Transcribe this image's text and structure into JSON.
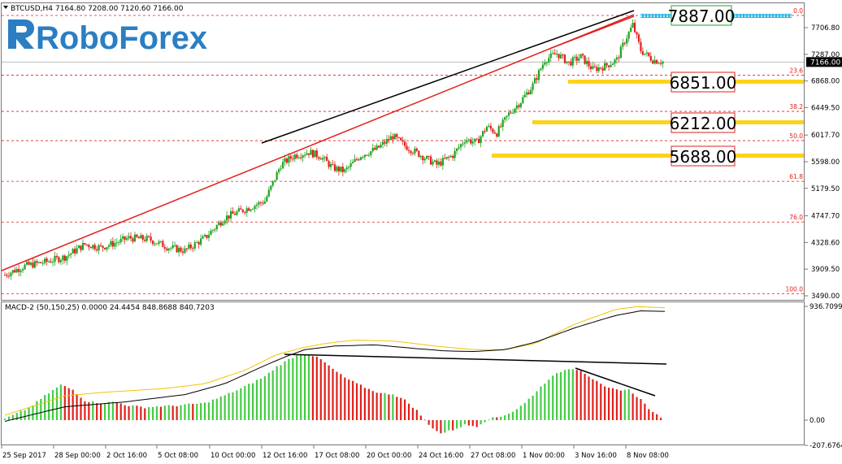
{
  "header": {
    "menu_icon": "triangle-down-icon",
    "symbol": "BTCUSD,H4",
    "ohlc": "7164.80 7208.00 7120.60 7166.00"
  },
  "brand": {
    "name": "RoboForex",
    "logo_icon": "roboforex-r-logo"
  },
  "indicator": {
    "label": "MACD-2 (50,150,25) 0.0000 24.4454 848.8688 840.7203"
  },
  "colors": {
    "bull": "#1fa31f",
    "bear": "#e0201b",
    "fib_line": "#e0201b",
    "trend_red": "#e0201b",
    "trend_black": "#000000",
    "hist_green": "#44cc44",
    "hist_red": "#e0201b",
    "signal": "#f3c400",
    "macd_line": "#000000",
    "target_box": "#ffd11a",
    "top_box": "#27b5e6"
  },
  "chart_data": [
    {
      "type": "candlestick",
      "symbol": "BTCUSD",
      "timeframe": "H4",
      "last_price": "7166.00",
      "ylim": [
        3490,
        8100
      ],
      "y_ticks": [
        "7706.80",
        "7287.00",
        "6868.00",
        "6449.50",
        "6017.70",
        "5598.00",
        "5179.50",
        "4747.70",
        "4328.60",
        "3909.50",
        "3490.00"
      ],
      "x_ticks": [
        "25 Sep 2017",
        "28 Sep 00:00",
        "2 Oct 16:00",
        "5 Oct 08:00",
        "10 Oct 00:00",
        "12 Oct 16:00",
        "17 Oct 08:00",
        "20 Oct 00:00",
        "24 Oct 16:00",
        "27 Oct 08:00",
        "1 Nov 00:00",
        "3 Nov 16:00",
        "8 Nov 08:00"
      ],
      "fibonacci": [
        {
          "level": "0.0",
          "price": 7887
        },
        {
          "level": "23.6",
          "price": 6960
        },
        {
          "level": "38.2",
          "price": 6390
        },
        {
          "level": "50.0",
          "price": 5930
        },
        {
          "level": "61.8",
          "price": 5290
        },
        {
          "level": "76.0",
          "price": 4650
        },
        {
          "level": "100.0",
          "price": 3520
        }
      ],
      "targets": [
        "7887.00",
        "6851.00",
        "6212.00",
        "5688.00"
      ],
      "close_path": [
        [
          0,
          3820
        ],
        [
          10,
          3960
        ],
        [
          20,
          4020
        ],
        [
          30,
          4100
        ],
        [
          40,
          4300
        ],
        [
          48,
          4250
        ],
        [
          55,
          4320
        ],
        [
          62,
          4400
        ],
        [
          72,
          4380
        ],
        [
          82,
          4250
        ],
        [
          90,
          4200
        ],
        [
          100,
          4400
        ],
        [
          110,
          4720
        ],
        [
          120,
          4850
        ],
        [
          130,
          4980
        ],
        [
          138,
          5550
        ],
        [
          145,
          5700
        ],
        [
          152,
          5750
        ],
        [
          158,
          5680
        ],
        [
          164,
          5500
        ],
        [
          170,
          5450
        ],
        [
          178,
          5700
        ],
        [
          186,
          5800
        ],
        [
          194,
          6000
        ],
        [
          200,
          5850
        ],
        [
          208,
          5700
        ],
        [
          216,
          5550
        ],
        [
          224,
          5700
        ],
        [
          230,
          5950
        ],
        [
          236,
          5900
        ],
        [
          241,
          6150
        ],
        [
          246,
          6050
        ],
        [
          252,
          6350
        ],
        [
          258,
          6550
        ],
        [
          264,
          6800
        ],
        [
          270,
          7200
        ],
        [
          276,
          7300
        ],
        [
          282,
          7150
        ],
        [
          288,
          7250
        ],
        [
          294,
          7050
        ],
        [
          300,
          7100
        ],
        [
          306,
          7200
        ],
        [
          310,
          7500
        ],
        [
          314,
          7750
        ],
        [
          318,
          7350
        ],
        [
          324,
          7200
        ],
        [
          330,
          7166
        ]
      ]
    },
    {
      "type": "bar",
      "indicator": "MACD-2 (50,150,25)",
      "ylim": [
        -207.6764,
        936.7099
      ],
      "y_ticks": [
        "936.7099",
        "0.00",
        "-207.6764"
      ],
      "histogram_path": [
        [
          0,
          10
        ],
        [
          12,
          100
        ],
        [
          20,
          200
        ],
        [
          28,
          290
        ],
        [
          34,
          250
        ],
        [
          40,
          160
        ],
        [
          48,
          140
        ],
        [
          55,
          150
        ],
        [
          62,
          120
        ],
        [
          70,
          105
        ],
        [
          78,
          115
        ],
        [
          86,
          120
        ],
        [
          92,
          130
        ],
        [
          100,
          140
        ],
        [
          108,
          190
        ],
        [
          118,
          260
        ],
        [
          130,
          360
        ],
        [
          136,
          440
        ],
        [
          142,
          500
        ],
        [
          147,
          540
        ],
        [
          152,
          545
        ],
        [
          158,
          500
        ],
        [
          164,
          420
        ],
        [
          170,
          350
        ],
        [
          176,
          300
        ],
        [
          182,
          255
        ],
        [
          188,
          220
        ],
        [
          194,
          215
        ],
        [
          200,
          165
        ],
        [
          206,
          80
        ],
        [
          212,
          -40
        ],
        [
          218,
          -110
        ],
        [
          224,
          -80
        ],
        [
          230,
          -40
        ],
        [
          236,
          -50
        ],
        [
          242,
          10
        ],
        [
          248,
          30
        ],
        [
          254,
          70
        ],
        [
          260,
          140
        ],
        [
          266,
          240
        ],
        [
          272,
          340
        ],
        [
          278,
          400
        ],
        [
          283,
          430
        ],
        [
          288,
          410
        ],
        [
          294,
          340
        ],
        [
          300,
          270
        ],
        [
          306,
          250
        ],
        [
          312,
          250
        ],
        [
          318,
          170
        ],
        [
          324,
          60
        ],
        [
          330,
          10
        ]
      ],
      "macd_path": [
        [
          0,
          -10
        ],
        [
          30,
          110
        ],
        [
          60,
          150
        ],
        [
          90,
          210
        ],
        [
          110,
          300
        ],
        [
          130,
          450
        ],
        [
          140,
          520
        ],
        [
          150,
          580
        ],
        [
          165,
          610
        ],
        [
          185,
          620
        ],
        [
          205,
          590
        ],
        [
          220,
          570
        ],
        [
          235,
          565
        ],
        [
          250,
          580
        ],
        [
          265,
          640
        ],
        [
          285,
          760
        ],
        [
          305,
          860
        ],
        [
          318,
          900
        ],
        [
          330,
          895
        ]
      ],
      "signal_path": [
        [
          0,
          40
        ],
        [
          30,
          200
        ],
        [
          50,
          230
        ],
        [
          80,
          260
        ],
        [
          100,
          300
        ],
        [
          120,
          410
        ],
        [
          136,
          540
        ],
        [
          150,
          600
        ],
        [
          160,
          630
        ],
        [
          175,
          660
        ],
        [
          195,
          650
        ],
        [
          215,
          610
        ],
        [
          235,
          580
        ],
        [
          250,
          580
        ],
        [
          265,
          630
        ],
        [
          285,
          790
        ],
        [
          305,
          910
        ],
        [
          316,
          935
        ],
        [
          330,
          925
        ]
      ]
    }
  ]
}
